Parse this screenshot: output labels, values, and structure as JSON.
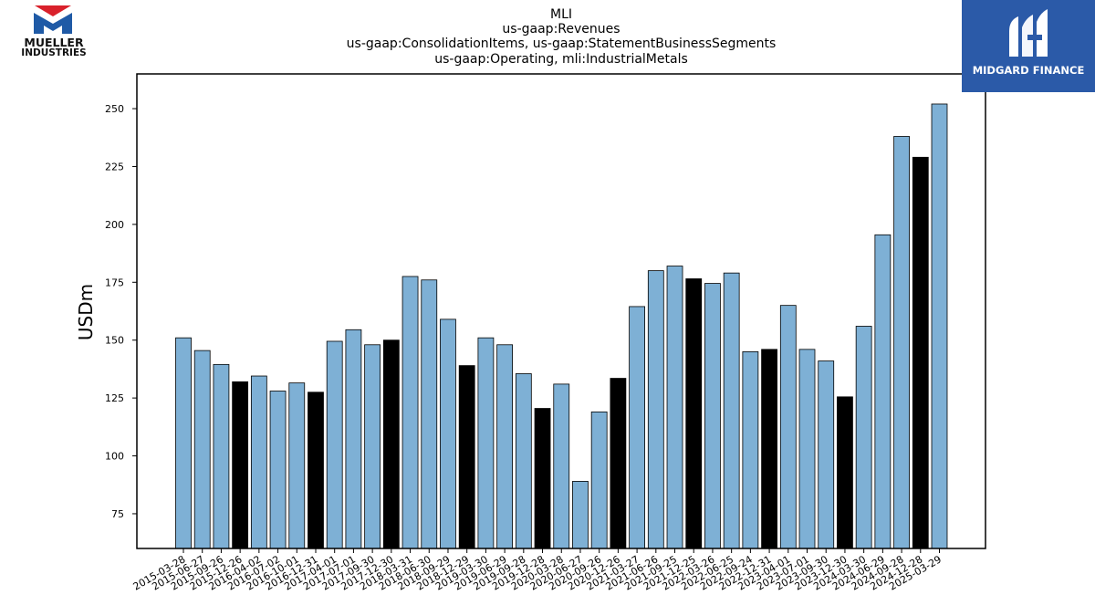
{
  "header": {
    "title_lines": [
      "MLI",
      "us-gaap:Revenues",
      "us-gaap:ConsolidationItems, us-gaap:StatementBusinessSegments",
      "us-gaap:Operating, mli:IndustrialMetals"
    ]
  },
  "logos": {
    "left": {
      "line1": "MUELLER",
      "line2": "INDUSTRIES",
      "brand_red": "#d9212b",
      "brand_blue": "#1f5aa6"
    },
    "right": {
      "text": "MIDGARD FINANCE",
      "background": "#2b5aa8"
    }
  },
  "chart_data": {
    "type": "bar",
    "title": "MLI\nus-gaap:Revenues\nus-gaap:ConsolidationItems, us-gaap:StatementBusinessSegments\nus-gaap:Operating, mli:IndustrialMetals",
    "xlabel": "",
    "ylabel": "USDm",
    "ylim": [
      60,
      265
    ],
    "yticks": [
      75,
      100,
      125,
      150,
      175,
      200,
      225,
      250
    ],
    "grid": false,
    "colors": {
      "quarter": "#7eb0d5",
      "year_end": "#000000",
      "edge": "#000000"
    },
    "categories": [
      "2015-03-28",
      "2015-06-27",
      "2015-09-26",
      "2015-12-26",
      "2016-04-02",
      "2016-07-02",
      "2016-10-01",
      "2016-12-31",
      "2017-04-01",
      "2017-07-01",
      "2017-09-30",
      "2017-12-30",
      "2018-03-31",
      "2018-06-30",
      "2018-09-29",
      "2018-12-29",
      "2019-03-30",
      "2019-06-29",
      "2019-09-28",
      "2019-12-28",
      "2020-03-28",
      "2020-06-27",
      "2020-09-26",
      "2020-12-26",
      "2021-03-27",
      "2021-06-26",
      "2021-09-25",
      "2021-12-25",
      "2022-03-26",
      "2022-06-25",
      "2022-09-24",
      "2022-12-31",
      "2023-04-01",
      "2023-07-01",
      "2023-09-30",
      "2023-12-30",
      "2024-03-30",
      "2024-06-29",
      "2024-09-28",
      "2024-12-28",
      "2025-03-29"
    ],
    "values": [
      151,
      145.5,
      139.5,
      132,
      134.5,
      128,
      131.5,
      127.5,
      149.5,
      154.5,
      148,
      150,
      177.5,
      176,
      159,
      139,
      151,
      148,
      135.5,
      120.5,
      131,
      89,
      119,
      133.5,
      164.5,
      180,
      182,
      176.5,
      174.5,
      179,
      145,
      146,
      165,
      146,
      141,
      125.5,
      156,
      195.5,
      238,
      229,
      252
    ],
    "year_end": [
      false,
      false,
      false,
      true,
      false,
      false,
      false,
      true,
      false,
      false,
      false,
      true,
      false,
      false,
      false,
      true,
      false,
      false,
      false,
      true,
      false,
      false,
      false,
      true,
      false,
      false,
      false,
      true,
      false,
      false,
      false,
      true,
      false,
      false,
      false,
      true,
      false,
      false,
      false,
      true,
      false
    ]
  }
}
